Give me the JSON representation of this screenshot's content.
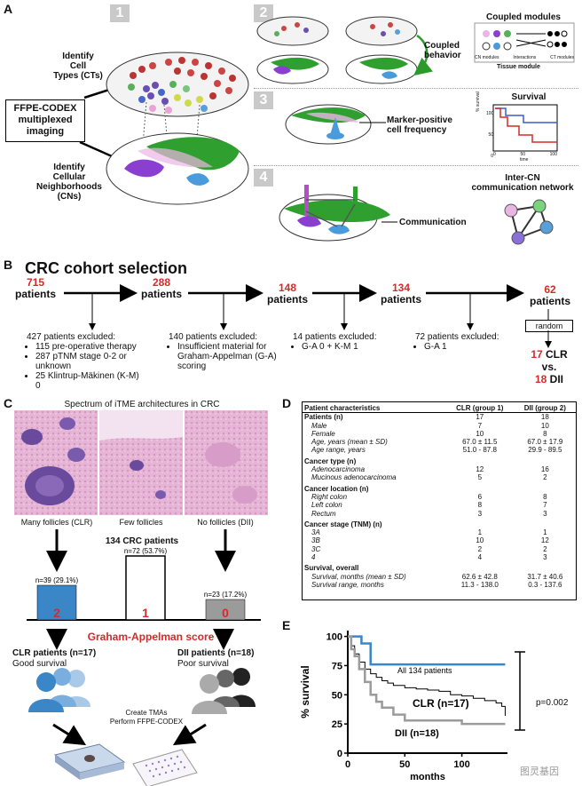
{
  "panelA": {
    "letter": "A",
    "steps": [
      "1",
      "2",
      "3",
      "4"
    ],
    "imaging_label": [
      "FFPE-CODEX",
      "multiplexed",
      "imaging"
    ],
    "identify_ct": [
      "Identify",
      "Cell",
      "Types (CTs)"
    ],
    "identify_cn": [
      "Identify",
      "Cellular",
      "Neighborhoods (CNs)"
    ],
    "coupled_behavior": [
      "Coupled",
      "behavior"
    ],
    "coupled_modules_title": "Coupled modules",
    "coupled_modules_cols": [
      "CN modules",
      "Interactions",
      "CT modules"
    ],
    "tissue_module": "Tissue module",
    "marker_positive": [
      "Marker-positive",
      "cell frequency"
    ],
    "survival_title": "Survival",
    "survival_ylabel": "% survival",
    "survival_xlabel": "time",
    "survival_ticks": [
      "0",
      "50",
      "100"
    ],
    "survival_yticks": [
      "100",
      "50",
      "0"
    ],
    "communication": "Communication",
    "intercn_title": [
      "Inter-CN",
      "communication network"
    ]
  },
  "panelB": {
    "letter": "B",
    "title": "CRC cohort selection",
    "stages": [
      {
        "count": "715",
        "unit": "patients"
      },
      {
        "count": "288",
        "unit": "patients"
      },
      {
        "count": "148",
        "unit": "patients"
      },
      {
        "count": "134",
        "unit": "patients"
      },
      {
        "count": "62",
        "unit": "patients"
      }
    ],
    "excl1": {
      "head": "427 patients excluded:",
      "items": [
        "115 pre-operative therapy",
        "287 pTNM stage 0-2 or unknown",
        "25 Klintrup-Mäkinen (K-M) 0"
      ]
    },
    "excl2": {
      "head": "140 patients excluded:",
      "items": [
        "Insufficient material for Graham-Appelman (G-A) scoring"
      ]
    },
    "excl3": {
      "head": "14 patients excluded:",
      "items": [
        "G-A 0 + K-M 1"
      ]
    },
    "excl4": {
      "head": "72 patients excluded:",
      "items": [
        "G-A 1"
      ]
    },
    "random": "random",
    "clr_n": "17",
    "clr": "CLR",
    "vs": "vs.",
    "dii_n": "18",
    "dii": "DII"
  },
  "panelC": {
    "letter": "C",
    "title": "Spectrum of iTME architectures in CRC",
    "img_labels": [
      "Many follicles (CLR)",
      "Few follicles",
      "No follicles (DII)"
    ],
    "cohort": "134 CRC patients",
    "bars": [
      {
        "label": "n=39 (29.1%)",
        "score": "2",
        "value": 39
      },
      {
        "label": "n=72 (53.7%)",
        "score": "1",
        "value": 72
      },
      {
        "label": "n=23 (17.2%)",
        "score": "0",
        "value": 23
      }
    ],
    "score_title": "Graham-Appelman score",
    "clr_group": "CLR patients (n=17)",
    "clr_sub": "Good survival",
    "dii_group": "DII patients (n=18)",
    "dii_sub": "Poor survival",
    "tma": [
      "Create TMAs",
      "Perform FFPE-CODEX"
    ],
    "colors": {
      "clr": "#3b86c6",
      "dii": "#9b9b9b",
      "red": "#d42a2a"
    }
  },
  "panelD": {
    "letter": "D",
    "headers": [
      "Patient characteristics",
      "CLR (group 1)",
      "DII (group 2)"
    ],
    "rows": [
      {
        "t": "h",
        "c": [
          "Patients (n)",
          "17",
          "18"
        ]
      },
      {
        "t": "i",
        "c": [
          "Male",
          "7",
          "10"
        ]
      },
      {
        "t": "i",
        "c": [
          "Female",
          "10",
          "8"
        ]
      },
      {
        "t": "i",
        "c": [
          "Age, years (mean ± SD)",
          "67.0 ± 11.5",
          "67.0 ± 17.9"
        ]
      },
      {
        "t": "i",
        "c": [
          "Age range, years",
          "51.0 - 87.8",
          "29.9 - 89.5"
        ]
      },
      {
        "t": "h",
        "c": [
          "Cancer type (n)",
          "",
          ""
        ]
      },
      {
        "t": "i",
        "c": [
          "Adenocarcinoma",
          "12",
          "16"
        ]
      },
      {
        "t": "i",
        "c": [
          "Mucinous adenocarcinoma",
          "5",
          "2"
        ]
      },
      {
        "t": "h",
        "c": [
          "Cancer location (n)",
          "",
          ""
        ]
      },
      {
        "t": "i",
        "c": [
          "Right colon",
          "6",
          "8"
        ]
      },
      {
        "t": "i",
        "c": [
          "Left colon",
          "8",
          "7"
        ]
      },
      {
        "t": "i",
        "c": [
          "Rectum",
          "3",
          "3"
        ]
      },
      {
        "t": "h",
        "c": [
          "Cancer stage (TNM) (n)",
          "",
          ""
        ]
      },
      {
        "t": "i",
        "c": [
          "3A",
          "1",
          "1"
        ]
      },
      {
        "t": "i",
        "c": [
          "3B",
          "10",
          "12"
        ]
      },
      {
        "t": "i",
        "c": [
          "3C",
          "2",
          "2"
        ]
      },
      {
        "t": "i",
        "c": [
          "4",
          "4",
          "3"
        ]
      },
      {
        "t": "h",
        "c": [
          "Survival, overall",
          "",
          ""
        ]
      },
      {
        "t": "i",
        "c": [
          "Survival, months (mean ± SD)",
          "62.6 ± 42.8",
          "31.7 ± 40.6"
        ]
      },
      {
        "t": "i",
        "c": [
          "Survival range, months",
          "11.3 - 138.0",
          "0.3 - 137.6"
        ]
      }
    ]
  },
  "panelE": {
    "letter": "E",
    "pvalue": "p=0.002",
    "watermark": "图灵基因"
  },
  "chart_data": {
    "type": "line",
    "xlabel": "months",
    "ylabel": "% survival",
    "xlim": [
      0,
      140
    ],
    "ylim": [
      0,
      105
    ],
    "xticks": [
      "0",
      "50",
      "100"
    ],
    "yticks": [
      "100",
      "75",
      "50",
      "25",
      "0"
    ],
    "series": [
      {
        "name": "CLR (n=17)",
        "color": "#3b86c6",
        "x": [
          0,
          8,
          12,
          20,
          138
        ],
        "y": [
          100,
          100,
          94,
          76,
          76
        ]
      },
      {
        "name": "All 134 patients",
        "color": "#000000",
        "x": [
          0,
          3,
          6,
          10,
          15,
          20,
          25,
          30,
          35,
          40,
          50,
          60,
          70,
          80,
          90,
          100,
          110,
          120,
          130,
          135,
          138
        ],
        "y": [
          100,
          92,
          85,
          78,
          72,
          68,
          65,
          62,
          60,
          58,
          56,
          55,
          54,
          53,
          50,
          49,
          47,
          45,
          43,
          40,
          32
        ]
      },
      {
        "name": "DII (n=18)",
        "color": "#9b9b9b",
        "x": [
          0,
          3,
          6,
          10,
          15,
          20,
          25,
          30,
          40,
          50,
          70,
          100,
          135,
          138
        ],
        "y": [
          100,
          89,
          83,
          72,
          61,
          50,
          44,
          39,
          33,
          28,
          28,
          25,
          25,
          25
        ]
      }
    ]
  }
}
